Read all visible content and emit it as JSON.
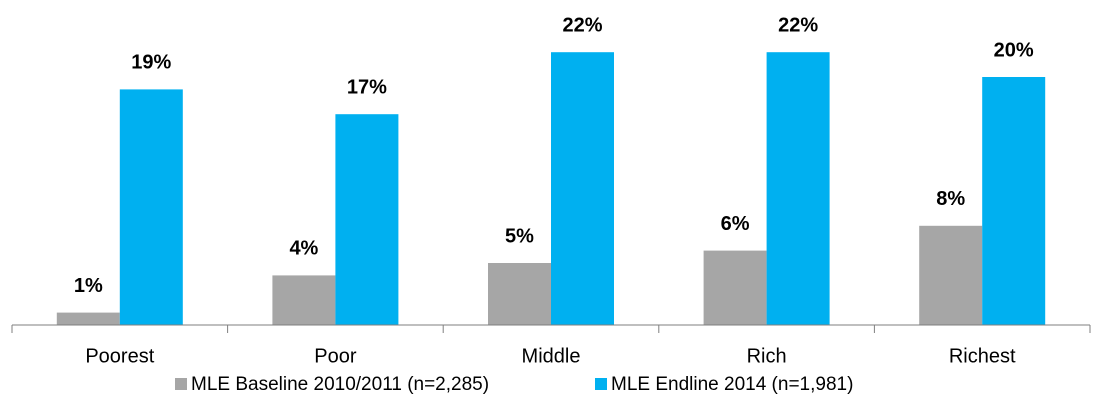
{
  "chart_data": {
    "type": "bar",
    "categories": [
      "Poorest",
      "Poor",
      "Middle",
      "Rich",
      "Richest"
    ],
    "series": [
      {
        "name": "MLE Baseline 2010/2011 (n=2,285)",
        "color": "#a6a6a6",
        "values": [
          1,
          4,
          5,
          6,
          8
        ],
        "value_labels": [
          "1%",
          "4%",
          "5%",
          "6%",
          "8%"
        ]
      },
      {
        "name": "MLE Endline 2014 (n=1,981)",
        "color": "#00b0f0",
        "values": [
          19,
          17,
          22,
          22,
          20
        ],
        "value_labels": [
          "19%",
          "17%",
          "22%",
          "22%",
          "20%"
        ]
      }
    ]
  }
}
